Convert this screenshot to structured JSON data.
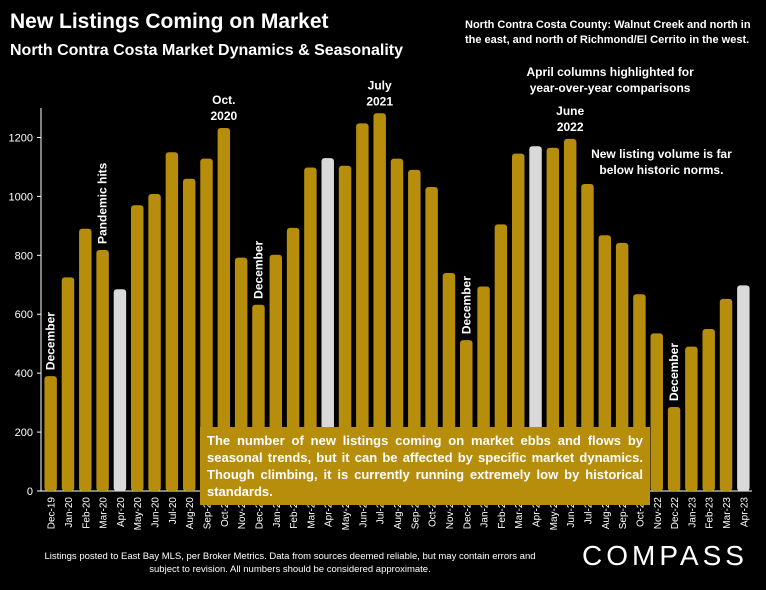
{
  "header": {
    "title": "New Listings Coming on Market",
    "subtitle": "North Contra Costa Market Dynamics & Seasonality",
    "region_note": "North Contra Costa County: Walnut Creek and north in the east, and north of Richmond/El Cerrito in the west."
  },
  "callout": "The number of new listings coming on market ebbs and flows by seasonal trends, but it can be affected by specific market dynamics. Though climbing, it is currently running extremely low by historical standards.",
  "footer": "Listings posted to East Bay MLS, per Broker Metrics.  Data from sources deemed reliable, but may contain errors and subject to revision. All numbers should be considered approximate.",
  "logo": "COMPASS",
  "colors": {
    "background": "#000000",
    "bar": "#b78d0c",
    "highlight_bar": "#d9d9d9",
    "axis": "#ffffff"
  },
  "chart_data": {
    "type": "bar",
    "categories": [
      "Dec-19",
      "Jan-20",
      "Feb-20",
      "Mar-20",
      "Apr-20",
      "May-20",
      "Jun-20",
      "Jul-20",
      "Aug-20",
      "Sep-20",
      "Oct-20",
      "Nov-20",
      "Dec-20",
      "Jan-21",
      "Feb-21",
      "Mar-21",
      "Apr-21",
      "May-21",
      "Jun-21",
      "Jul-21",
      "Aug-21",
      "Sep-21",
      "Oct-21",
      "Nov-21",
      "Dec-21",
      "Jan-22",
      "Feb-22",
      "Mar-22",
      "Apr-22",
      "May-22",
      "Jun-22",
      "Jul-22",
      "Aug-22",
      "Sep-22",
      "Oct-22",
      "Nov-22",
      "Dec-22",
      "Jan-23",
      "Feb-23",
      "Mar-23",
      "Apr-23"
    ],
    "values": [
      390,
      725,
      890,
      818,
      685,
      970,
      1008,
      1150,
      1060,
      1128,
      1232,
      792,
      632,
      802,
      893,
      1098,
      1130,
      1104,
      1248,
      1282,
      1128,
      1090,
      1032,
      740,
      512,
      694,
      905,
      1145,
      1170,
      1165,
      1195,
      1042,
      868,
      842,
      668,
      535,
      285,
      490,
      550,
      652,
      698
    ],
    "highlighted": [
      "Apr-20",
      "Apr-21",
      "Apr-22",
      "Apr-23"
    ],
    "ylim": [
      0,
      1300
    ],
    "yticks": [
      0,
      200,
      400,
      600,
      800,
      1000,
      1200
    ],
    "annotations": [
      {
        "text": "December",
        "category": "Dec-19",
        "orientation": "vertical"
      },
      {
        "text": "Pandemic hits",
        "category": "Mar-20",
        "orientation": "vertical"
      },
      {
        "text": "Oct.\n2020",
        "category": "Oct-20",
        "orientation": "horizontal"
      },
      {
        "text": "December",
        "category": "Dec-20",
        "orientation": "vertical"
      },
      {
        "text": "July\n2021",
        "category": "Jul-21",
        "orientation": "horizontal"
      },
      {
        "text": "December",
        "category": "Dec-21",
        "orientation": "vertical"
      },
      {
        "text": "June\n2022",
        "category": "Jun-22",
        "orientation": "horizontal"
      },
      {
        "text": "December",
        "category": "Dec-22",
        "orientation": "vertical"
      },
      {
        "text": "April columns highlighted for\nyear-over-year comparisons",
        "category": "Sep-22",
        "orientation": "note"
      },
      {
        "text": "New listing volume is far\nbelow historic norms.",
        "category": "Oct-22",
        "orientation": "note"
      }
    ]
  }
}
